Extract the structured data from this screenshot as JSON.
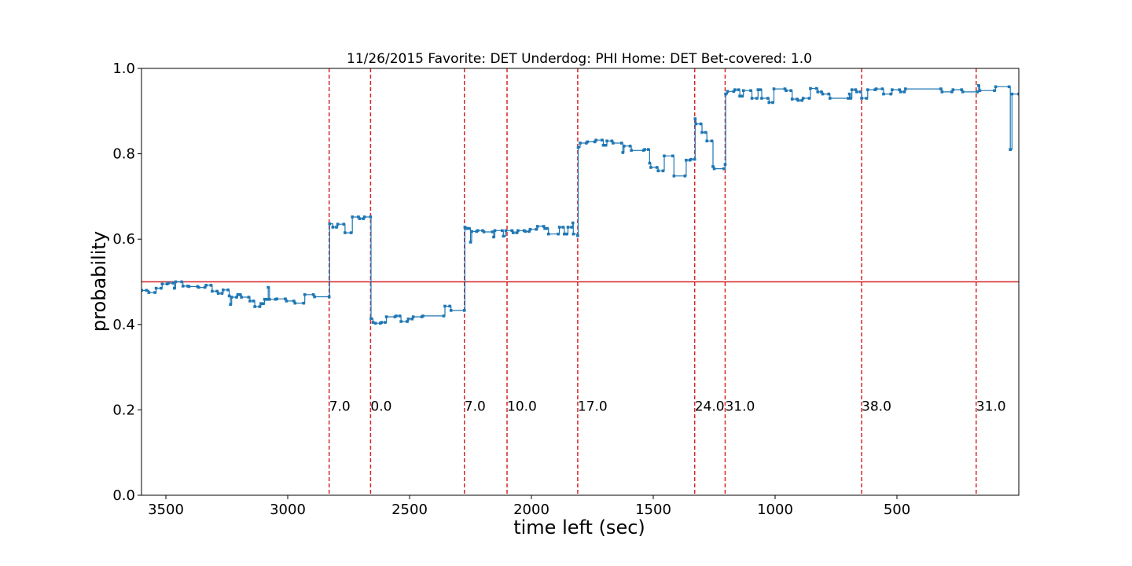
{
  "chart_data": {
    "type": "line",
    "title": "11/26/2015 Favorite: DET Underdog: PHI Home: DET Bet-covered: 1.0",
    "xlabel": "time left (sec)",
    "ylabel": "probability",
    "xlim": [
      3600,
      0
    ],
    "ylim": [
      0,
      1.0
    ],
    "x_ticks": [
      3500,
      3000,
      2500,
      2000,
      1500,
      1000,
      500
    ],
    "y_ticks": [
      0.0,
      0.2,
      0.4,
      0.6,
      0.8,
      1.0
    ],
    "grid": false,
    "reference_line": {
      "y": 0.5,
      "color": "#d62728"
    },
    "series": [
      {
        "color": "#1f77b4",
        "points": [
          [
            3600,
            0.48
          ],
          [
            3580,
            0.48
          ],
          [
            3570,
            0.475
          ],
          [
            3545,
            0.475
          ],
          [
            3540,
            0.485
          ],
          [
            3520,
            0.485
          ],
          [
            3515,
            0.495
          ],
          [
            3495,
            0.495
          ],
          [
            3490,
            0.497
          ],
          [
            3470,
            0.497
          ],
          [
            3465,
            0.485
          ],
          [
            3460,
            0.5
          ],
          [
            3435,
            0.5
          ],
          [
            3430,
            0.49
          ],
          [
            3410,
            0.49
          ],
          [
            3405,
            0.489
          ],
          [
            3370,
            0.489
          ],
          [
            3365,
            0.487
          ],
          [
            3340,
            0.487
          ],
          [
            3335,
            0.492
          ],
          [
            3315,
            0.492
          ],
          [
            3310,
            0.478
          ],
          [
            3290,
            0.478
          ],
          [
            3285,
            0.473
          ],
          [
            3270,
            0.473
          ],
          [
            3265,
            0.481
          ],
          [
            3245,
            0.481
          ],
          [
            3240,
            0.467
          ],
          [
            3235,
            0.447
          ],
          [
            3230,
            0.464
          ],
          [
            3210,
            0.464
          ],
          [
            3205,
            0.47
          ],
          [
            3195,
            0.47
          ],
          [
            3190,
            0.464
          ],
          [
            3160,
            0.464
          ],
          [
            3155,
            0.455
          ],
          [
            3140,
            0.455
          ],
          [
            3135,
            0.442
          ],
          [
            3115,
            0.442
          ],
          [
            3110,
            0.449
          ],
          [
            3100,
            0.449
          ],
          [
            3095,
            0.459
          ],
          [
            3085,
            0.459
          ],
          [
            3080,
            0.487
          ],
          [
            3075,
            0.459
          ],
          [
            3050,
            0.459
          ],
          [
            3045,
            0.46
          ],
          [
            3010,
            0.46
          ],
          [
            3005,
            0.455
          ],
          [
            2975,
            0.455
          ],
          [
            2970,
            0.45
          ],
          [
            2935,
            0.45
          ],
          [
            2930,
            0.47
          ],
          [
            2895,
            0.47
          ],
          [
            2890,
            0.465
          ],
          [
            2830,
            0.465
          ],
          [
            2828,
            0.636
          ],
          [
            2815,
            0.628
          ],
          [
            2800,
            0.628
          ],
          [
            2795,
            0.635
          ],
          [
            2770,
            0.635
          ],
          [
            2765,
            0.615
          ],
          [
            2740,
            0.615
          ],
          [
            2735,
            0.652
          ],
          [
            2710,
            0.652
          ],
          [
            2705,
            0.648
          ],
          [
            2690,
            0.648
          ],
          [
            2685,
            0.652
          ],
          [
            2660,
            0.652
          ],
          [
            2658,
            0.414
          ],
          [
            2650,
            0.405
          ],
          [
            2640,
            0.403
          ],
          [
            2620,
            0.403
          ],
          [
            2615,
            0.405
          ],
          [
            2600,
            0.405
          ],
          [
            2595,
            0.418
          ],
          [
            2560,
            0.418
          ],
          [
            2555,
            0.42
          ],
          [
            2540,
            0.42
          ],
          [
            2535,
            0.407
          ],
          [
            2510,
            0.407
          ],
          [
            2505,
            0.413
          ],
          [
            2490,
            0.413
          ],
          [
            2485,
            0.418
          ],
          [
            2450,
            0.418
          ],
          [
            2445,
            0.42
          ],
          [
            2360,
            0.42
          ],
          [
            2355,
            0.443
          ],
          [
            2335,
            0.443
          ],
          [
            2330,
            0.433
          ],
          [
            2275,
            0.433
          ],
          [
            2273,
            0.628
          ],
          [
            2265,
            0.625
          ],
          [
            2255,
            0.625
          ],
          [
            2250,
            0.593
          ],
          [
            2245,
            0.618
          ],
          [
            2225,
            0.618
          ],
          [
            2220,
            0.62
          ],
          [
            2200,
            0.62
          ],
          [
            2195,
            0.617
          ],
          [
            2160,
            0.617
          ],
          [
            2155,
            0.605
          ],
          [
            2150,
            0.62
          ],
          [
            2120,
            0.62
          ],
          [
            2115,
            0.607
          ],
          [
            2105,
            0.62
          ],
          [
            2080,
            0.62
          ],
          [
            2075,
            0.615
          ],
          [
            2060,
            0.615
          ],
          [
            2055,
            0.62
          ],
          [
            2030,
            0.62
          ],
          [
            2025,
            0.618
          ],
          [
            2010,
            0.618
          ],
          [
            2005,
            0.623
          ],
          [
            1980,
            0.623
          ],
          [
            1975,
            0.63
          ],
          [
            1950,
            0.63
          ],
          [
            1945,
            0.625
          ],
          [
            1935,
            0.625
          ],
          [
            1930,
            0.612
          ],
          [
            1890,
            0.612
          ],
          [
            1885,
            0.628
          ],
          [
            1870,
            0.628
          ],
          [
            1865,
            0.612
          ],
          [
            1855,
            0.612
          ],
          [
            1850,
            0.628
          ],
          [
            1835,
            0.628
          ],
          [
            1830,
            0.638
          ],
          [
            1828,
            0.612
          ],
          [
            1810,
            0.608
          ],
          [
            1808,
            0.815
          ],
          [
            1800,
            0.825
          ],
          [
            1775,
            0.825
          ],
          [
            1770,
            0.828
          ],
          [
            1740,
            0.828
          ],
          [
            1735,
            0.832
          ],
          [
            1710,
            0.832
          ],
          [
            1705,
            0.82
          ],
          [
            1695,
            0.82
          ],
          [
            1690,
            0.83
          ],
          [
            1670,
            0.83
          ],
          [
            1665,
            0.825
          ],
          [
            1630,
            0.825
          ],
          [
            1625,
            0.803
          ],
          [
            1620,
            0.818
          ],
          [
            1595,
            0.818
          ],
          [
            1590,
            0.808
          ],
          [
            1540,
            0.808
          ],
          [
            1535,
            0.81
          ],
          [
            1520,
            0.81
          ],
          [
            1515,
            0.778
          ],
          [
            1510,
            0.768
          ],
          [
            1485,
            0.768
          ],
          [
            1480,
            0.76
          ],
          [
            1460,
            0.76
          ],
          [
            1455,
            0.795
          ],
          [
            1420,
            0.795
          ],
          [
            1415,
            0.748
          ],
          [
            1370,
            0.748
          ],
          [
            1365,
            0.785
          ],
          [
            1350,
            0.785
          ],
          [
            1345,
            0.787
          ],
          [
            1330,
            0.787
          ],
          [
            1328,
            0.882
          ],
          [
            1325,
            0.87
          ],
          [
            1305,
            0.87
          ],
          [
            1300,
            0.85
          ],
          [
            1285,
            0.85
          ],
          [
            1280,
            0.83
          ],
          [
            1260,
            0.83
          ],
          [
            1255,
            0.77
          ],
          [
            1250,
            0.765
          ],
          [
            1210,
            0.765
          ],
          [
            1205,
            0.775
          ],
          [
            1203,
            0.94
          ],
          [
            1195,
            0.946
          ],
          [
            1170,
            0.946
          ],
          [
            1165,
            0.95
          ],
          [
            1150,
            0.95
          ],
          [
            1145,
            0.935
          ],
          [
            1135,
            0.935
          ],
          [
            1130,
            0.948
          ],
          [
            1100,
            0.948
          ],
          [
            1095,
            0.93
          ],
          [
            1075,
            0.93
          ],
          [
            1070,
            0.95
          ],
          [
            1060,
            0.95
          ],
          [
            1055,
            0.93
          ],
          [
            1030,
            0.93
          ],
          [
            1025,
            0.92
          ],
          [
            1010,
            0.92
          ],
          [
            1005,
            0.952
          ],
          [
            960,
            0.952
          ],
          [
            955,
            0.948
          ],
          [
            935,
            0.948
          ],
          [
            930,
            0.928
          ],
          [
            910,
            0.928
          ],
          [
            905,
            0.925
          ],
          [
            890,
            0.925
          ],
          [
            885,
            0.93
          ],
          [
            860,
            0.93
          ],
          [
            855,
            0.953
          ],
          [
            830,
            0.953
          ],
          [
            825,
            0.945
          ],
          [
            810,
            0.945
          ],
          [
            805,
            0.94
          ],
          [
            780,
            0.94
          ],
          [
            775,
            0.93
          ],
          [
            700,
            0.93
          ],
          [
            695,
            0.94
          ],
          [
            690,
            0.93
          ],
          [
            685,
            0.95
          ],
          [
            670,
            0.95
          ],
          [
            665,
            0.945
          ],
          [
            650,
            0.945
          ],
          [
            645,
            0.93
          ],
          [
            625,
            0.93
          ],
          [
            620,
            0.95
          ],
          [
            590,
            0.95
          ],
          [
            585,
            0.952
          ],
          [
            560,
            0.952
          ],
          [
            555,
            0.94
          ],
          [
            525,
            0.94
          ],
          [
            520,
            0.95
          ],
          [
            490,
            0.95
          ],
          [
            485,
            0.945
          ],
          [
            470,
            0.945
          ],
          [
            465,
            0.952
          ],
          [
            320,
            0.952
          ],
          [
            315,
            0.945
          ],
          [
            275,
            0.945
          ],
          [
            270,
            0.95
          ],
          [
            235,
            0.95
          ],
          [
            230,
            0.945
          ],
          [
            170,
            0.945
          ],
          [
            165,
            0.96
          ],
          [
            160,
            0.948
          ],
          [
            100,
            0.948
          ],
          [
            95,
            0.957
          ],
          [
            40,
            0.957
          ],
          [
            35,
            0.81
          ],
          [
            28,
            0.94
          ],
          [
            0,
            0.94
          ]
        ]
      }
    ],
    "events": [
      {
        "x": 2830,
        "label": "7.0"
      },
      {
        "x": 2660,
        "label": "0.0"
      },
      {
        "x": 2275,
        "label": "7.0"
      },
      {
        "x": 2100,
        "label": "10.0"
      },
      {
        "x": 1810,
        "label": "17.0"
      },
      {
        "x": 1330,
        "label": "24.0"
      },
      {
        "x": 1205,
        "label": "31.0"
      },
      {
        "x": 645,
        "label": "38.0"
      },
      {
        "x": 175,
        "label": "31.0"
      }
    ],
    "event_line_color": "#d62728",
    "event_label_y": 0.2
  }
}
